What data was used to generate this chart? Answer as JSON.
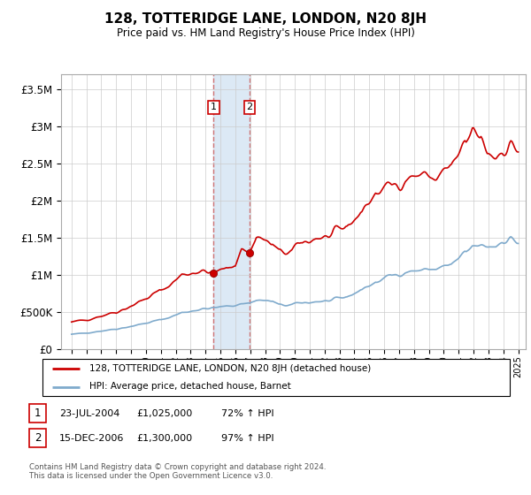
{
  "title": "128, TOTTERIDGE LANE, LONDON, N20 8JH",
  "subtitle": "Price paid vs. HM Land Registry's House Price Index (HPI)",
  "ytick_values": [
    0,
    500000,
    1000000,
    1500000,
    2000000,
    2500000,
    3000000,
    3500000
  ],
  "ylim": [
    0,
    3700000
  ],
  "line_color_red": "#cc0000",
  "line_color_blue": "#7faacc",
  "shade_color": "#dce9f5",
  "marker_color": "#cc0000",
  "sale1_x": 2004.55,
  "sale1_price": 1025000,
  "sale2_x": 2006.96,
  "sale2_price": 1300000,
  "legend_label_red": "128, TOTTERIDGE LANE, LONDON, N20 8JH (detached house)",
  "legend_label_blue": "HPI: Average price, detached house, Barnet",
  "annotation1_date": "23-JUL-2004",
  "annotation1_price": "£1,025,000",
  "annotation1_hpi": "72% ↑ HPI",
  "annotation2_date": "15-DEC-2006",
  "annotation2_price": "£1,300,000",
  "annotation2_hpi": "97% ↑ HPI",
  "footer": "Contains HM Land Registry data © Crown copyright and database right 2024.\nThis data is licensed under the Open Government Licence v3.0."
}
